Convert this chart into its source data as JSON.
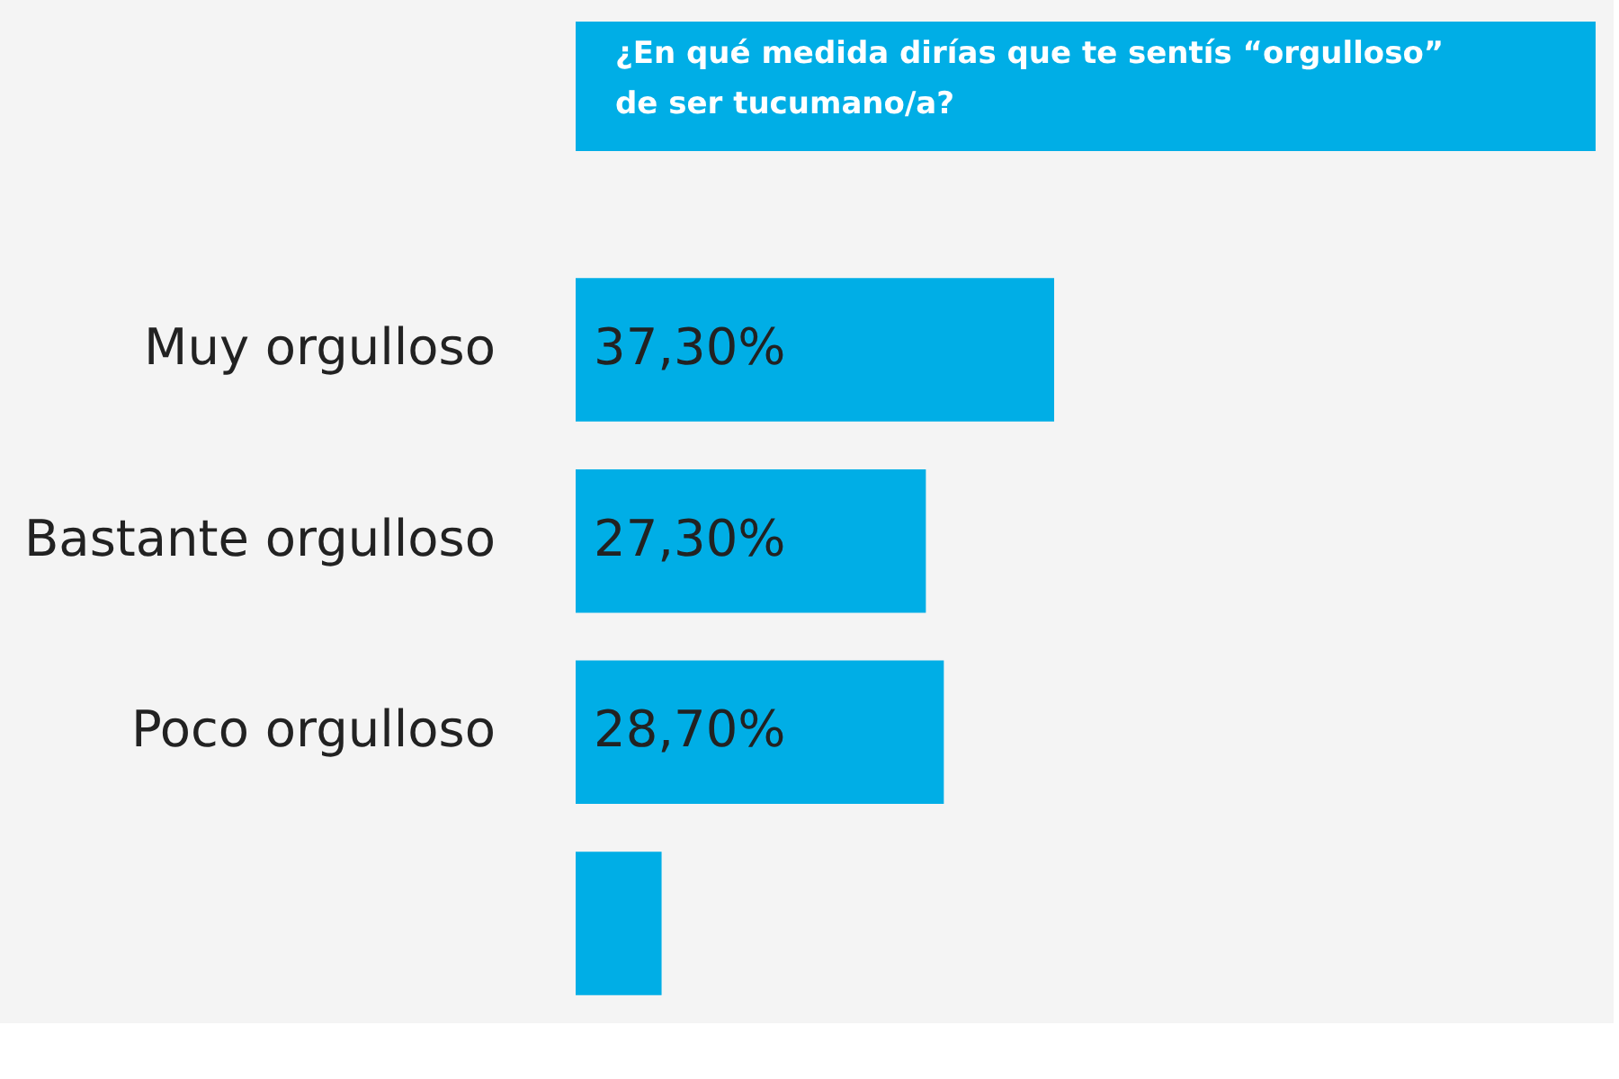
{
  "chart_data": {
    "type": "bar",
    "orientation": "horizontal",
    "title": "¿En qué medida dirías que te sentís “orgulloso”\nde ser tucumano/a?",
    "categories": [
      "Muy orgulloso",
      "Bastante orgulloso",
      "Poco orgulloso",
      null
    ],
    "values": [
      37.3,
      27.3,
      28.7,
      6.7
    ],
    "value_labels": [
      "37,30%",
      "27,30%",
      "28,70%",
      null
    ],
    "color": "#00aee6"
  }
}
